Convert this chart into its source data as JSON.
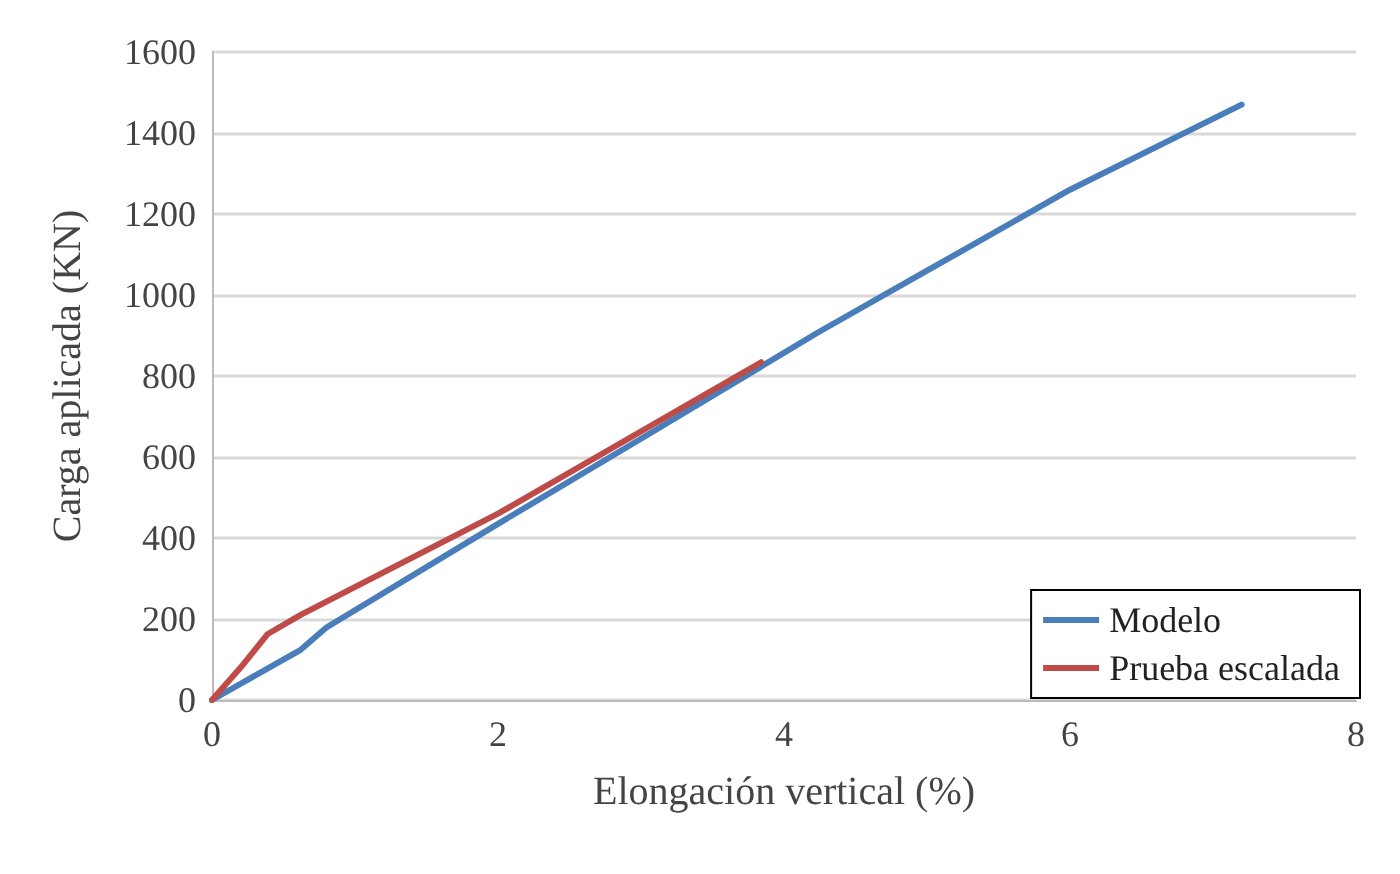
{
  "chart_data": {
    "type": "line",
    "xlabel": "Elongación vertical (%)",
    "ylabel": "Carga aplicada (KN)",
    "xlim": [
      0,
      8
    ],
    "xticks": [
      0,
      2,
      4,
      6,
      8
    ],
    "ylim": [
      0,
      1600
    ],
    "yticks": [
      0,
      200,
      400,
      600,
      800,
      1000,
      1200,
      1400,
      1600
    ],
    "grid": "y",
    "legend": "bottom right",
    "marker": "none",
    "line_style": "solid",
    "series": [
      {
        "name": "Modelo",
        "color": "#4a7ebb",
        "x": [
          0,
          0.3,
          0.62,
          0.8,
          2,
          3,
          4.24,
          5,
          6,
          7.2
        ],
        "values": [
          0,
          60,
          124,
          179,
          435,
          645,
          908,
          1060,
          1260,
          1470
        ]
      },
      {
        "name": "Prueba escalada",
        "color": "#be4b48",
        "x": [
          0,
          0.2,
          0.39,
          0.62,
          2,
          3.84
        ],
        "values": [
          0,
          80,
          163,
          210,
          460,
          834
        ]
      }
    ]
  }
}
